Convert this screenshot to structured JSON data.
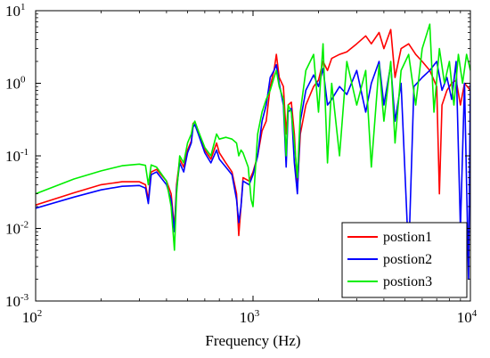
{
  "chart_data": {
    "type": "line",
    "title": "",
    "xlabel": "Frequency (Hz)",
    "ylabel": "",
    "xscale": "log",
    "yscale": "log",
    "xlim": [
      100,
      10000
    ],
    "ylim": [
      0.001,
      10
    ],
    "x_ticks": [
      {
        "value": 100,
        "base": "10",
        "exp": "2"
      },
      {
        "value": 1000,
        "base": "10",
        "exp": "3"
      },
      {
        "value": 10000,
        "base": "10",
        "exp": "4"
      }
    ],
    "y_ticks": [
      {
        "value": 0.001,
        "base": "10",
        "exp": "-3"
      },
      {
        "value": 0.01,
        "base": "10",
        "exp": "-2"
      },
      {
        "value": 0.1,
        "base": "10",
        "exp": "-1"
      },
      {
        "value": 1,
        "base": "10",
        "exp": "0"
      },
      {
        "value": 10,
        "base": "10",
        "exp": "1"
      }
    ],
    "legend_position": "bottom-right",
    "grid": false,
    "series": [
      {
        "name": "postion1",
        "color": "#ff0000",
        "points": [
          [
            100,
            0.021
          ],
          [
            150,
            0.031
          ],
          [
            200,
            0.04
          ],
          [
            250,
            0.044
          ],
          [
            300,
            0.044
          ],
          [
            320,
            0.04
          ],
          [
            330,
            0.025
          ],
          [
            340,
            0.06
          ],
          [
            360,
            0.065
          ],
          [
            400,
            0.045
          ],
          [
            420,
            0.03
          ],
          [
            435,
            0.01
          ],
          [
            445,
            0.04
          ],
          [
            460,
            0.09
          ],
          [
            480,
            0.07
          ],
          [
            500,
            0.12
          ],
          [
            520,
            0.16
          ],
          [
            530,
            0.28
          ],
          [
            540,
            0.29
          ],
          [
            560,
            0.22
          ],
          [
            600,
            0.12
          ],
          [
            640,
            0.09
          ],
          [
            680,
            0.15
          ],
          [
            700,
            0.11
          ],
          [
            750,
            0.08
          ],
          [
            800,
            0.06
          ],
          [
            840,
            0.03
          ],
          [
            860,
            0.008
          ],
          [
            880,
            0.02
          ],
          [
            900,
            0.05
          ],
          [
            960,
            0.045
          ],
          [
            1000,
            0.06
          ],
          [
            1050,
            0.1
          ],
          [
            1100,
            0.22
          ],
          [
            1150,
            0.3
          ],
          [
            1200,
            0.9
          ],
          [
            1250,
            1.5
          ],
          [
            1280,
            2.5
          ],
          [
            1320,
            1.2
          ],
          [
            1380,
            0.9
          ],
          [
            1420,
            0.2
          ],
          [
            1450,
            0.5
          ],
          [
            1500,
            0.55
          ],
          [
            1550,
            0.2
          ],
          [
            1600,
            0.035
          ],
          [
            1650,
            0.2
          ],
          [
            1750,
            0.5
          ],
          [
            1900,
            0.9
          ],
          [
            2000,
            1.1
          ],
          [
            2100,
            2.0
          ],
          [
            2200,
            1.5
          ],
          [
            2300,
            2.2
          ],
          [
            2500,
            2.5
          ],
          [
            2700,
            2.7
          ],
          [
            3000,
            3.5
          ],
          [
            3300,
            4.5
          ],
          [
            3500,
            3.5
          ],
          [
            3800,
            5.0
          ],
          [
            4000,
            3.0
          ],
          [
            4300,
            5.5
          ],
          [
            4500,
            1.2
          ],
          [
            4800,
            3.0
          ],
          [
            5200,
            3.5
          ],
          [
            5600,
            2.5
          ],
          [
            6000,
            2.0
          ],
          [
            6500,
            1.5
          ],
          [
            7000,
            0.9
          ],
          [
            7200,
            0.03
          ],
          [
            7400,
            0.5
          ],
          [
            7800,
            0.8
          ],
          [
            8200,
            1.0
          ],
          [
            8600,
            1.1
          ],
          [
            9000,
            0.5
          ],
          [
            9400,
            1.0
          ],
          [
            10000,
            0.8
          ]
        ]
      },
      {
        "name": "postion2",
        "color": "#0000ff",
        "points": [
          [
            100,
            0.019
          ],
          [
            150,
            0.027
          ],
          [
            200,
            0.034
          ],
          [
            250,
            0.038
          ],
          [
            300,
            0.039
          ],
          [
            320,
            0.036
          ],
          [
            330,
            0.022
          ],
          [
            340,
            0.055
          ],
          [
            360,
            0.06
          ],
          [
            400,
            0.04
          ],
          [
            420,
            0.025
          ],
          [
            435,
            0.009
          ],
          [
            445,
            0.035
          ],
          [
            460,
            0.08
          ],
          [
            480,
            0.06
          ],
          [
            500,
            0.11
          ],
          [
            520,
            0.15
          ],
          [
            530,
            0.25
          ],
          [
            540,
            0.27
          ],
          [
            560,
            0.2
          ],
          [
            600,
            0.11
          ],
          [
            640,
            0.08
          ],
          [
            680,
            0.12
          ],
          [
            700,
            0.09
          ],
          [
            750,
            0.07
          ],
          [
            800,
            0.055
          ],
          [
            840,
            0.025
          ],
          [
            860,
            0.012
          ],
          [
            880,
            0.02
          ],
          [
            900,
            0.045
          ],
          [
            960,
            0.04
          ],
          [
            1000,
            0.055
          ],
          [
            1050,
            0.1
          ],
          [
            1100,
            0.3
          ],
          [
            1150,
            0.5
          ],
          [
            1200,
            1.2
          ],
          [
            1250,
            1.5
          ],
          [
            1280,
            1.8
          ],
          [
            1320,
            1.0
          ],
          [
            1380,
            0.5
          ],
          [
            1420,
            0.07
          ],
          [
            1450,
            0.4
          ],
          [
            1500,
            0.45
          ],
          [
            1550,
            0.08
          ],
          [
            1600,
            0.03
          ],
          [
            1650,
            0.3
          ],
          [
            1750,
            0.8
          ],
          [
            1900,
            1.3
          ],
          [
            2000,
            0.9
          ],
          [
            2100,
            1.6
          ],
          [
            2200,
            0.5
          ],
          [
            2300,
            0.6
          ],
          [
            2500,
            0.9
          ],
          [
            2700,
            0.7
          ],
          [
            3000,
            1.5
          ],
          [
            3300,
            0.4
          ],
          [
            3500,
            1.0
          ],
          [
            3800,
            2.0
          ],
          [
            4000,
            0.5
          ],
          [
            4300,
            1.8
          ],
          [
            4500,
            0.3
          ],
          [
            4800,
            1.0
          ],
          [
            5200,
            0.004
          ],
          [
            5500,
            0.9
          ],
          [
            6000,
            1.2
          ],
          [
            6500,
            1.5
          ],
          [
            7000,
            2.0
          ],
          [
            7400,
            0.8
          ],
          [
            7800,
            1.2
          ],
          [
            8200,
            0.6
          ],
          [
            8600,
            2.0
          ],
          [
            9000,
            0.01
          ],
          [
            9400,
            1.0
          ],
          [
            9800,
            0.002
          ],
          [
            10000,
            1.0
          ]
        ]
      },
      {
        "name": "postion3",
        "color": "#00ee00",
        "points": [
          [
            100,
            0.03
          ],
          [
            150,
            0.048
          ],
          [
            200,
            0.062
          ],
          [
            250,
            0.073
          ],
          [
            300,
            0.077
          ],
          [
            320,
            0.074
          ],
          [
            330,
            0.04
          ],
          [
            340,
            0.075
          ],
          [
            360,
            0.07
          ],
          [
            400,
            0.045
          ],
          [
            420,
            0.02
          ],
          [
            435,
            0.005
          ],
          [
            445,
            0.03
          ],
          [
            460,
            0.1
          ],
          [
            480,
            0.08
          ],
          [
            500,
            0.15
          ],
          [
            520,
            0.2
          ],
          [
            530,
            0.27
          ],
          [
            540,
            0.3
          ],
          [
            560,
            0.22
          ],
          [
            600,
            0.13
          ],
          [
            640,
            0.1
          ],
          [
            680,
            0.2
          ],
          [
            700,
            0.17
          ],
          [
            750,
            0.18
          ],
          [
            800,
            0.17
          ],
          [
            840,
            0.15
          ],
          [
            860,
            0.1
          ],
          [
            880,
            0.12
          ],
          [
            900,
            0.11
          ],
          [
            950,
            0.07
          ],
          [
            980,
            0.025
          ],
          [
            1000,
            0.02
          ],
          [
            1050,
            0.2
          ],
          [
            1100,
            0.4
          ],
          [
            1150,
            0.6
          ],
          [
            1200,
            0.8
          ],
          [
            1250,
            1.2
          ],
          [
            1280,
            1.5
          ],
          [
            1320,
            0.9
          ],
          [
            1380,
            0.6
          ],
          [
            1420,
            0.1
          ],
          [
            1450,
            0.5
          ],
          [
            1500,
            0.4
          ],
          [
            1550,
            0.15
          ],
          [
            1600,
            0.05
          ],
          [
            1650,
            0.4
          ],
          [
            1750,
            1.5
          ],
          [
            1900,
            2.5
          ],
          [
            2000,
            0.4
          ],
          [
            2100,
            3.5
          ],
          [
            2200,
            0.08
          ],
          [
            2300,
            1.0
          ],
          [
            2500,
            0.1
          ],
          [
            2700,
            2.0
          ],
          [
            3000,
            0.5
          ],
          [
            3300,
            1.5
          ],
          [
            3500,
            0.07
          ],
          [
            3800,
            1.8
          ],
          [
            4000,
            0.3
          ],
          [
            4300,
            2.0
          ],
          [
            4500,
            0.15
          ],
          [
            4800,
            1.5
          ],
          [
            5200,
            2.5
          ],
          [
            5600,
            0.5
          ],
          [
            6000,
            3.0
          ],
          [
            6500,
            6.5
          ],
          [
            6800,
            0.4
          ],
          [
            7200,
            3.0
          ],
          [
            7600,
            1.0
          ],
          [
            8000,
            2.0
          ],
          [
            8400,
            0.5
          ],
          [
            8800,
            2.5
          ],
          [
            9200,
            1.0
          ],
          [
            9600,
            2.5
          ],
          [
            10000,
            1.5
          ]
        ]
      }
    ]
  }
}
